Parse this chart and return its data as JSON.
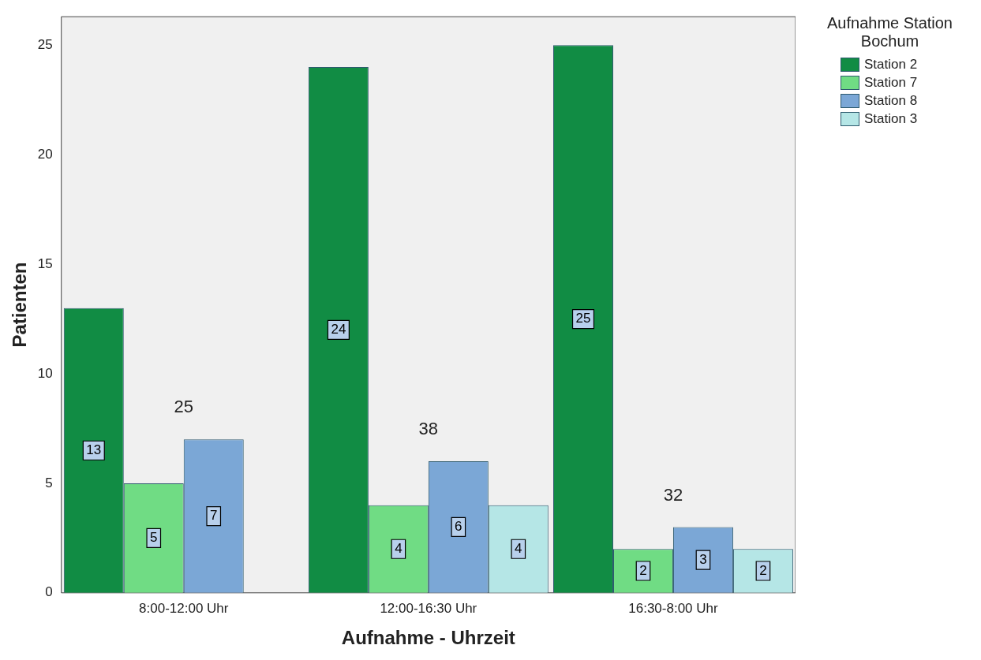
{
  "chart_data": {
    "type": "bar",
    "xlabel": "Aufnahme - Uhrzeit",
    "ylabel": "Patienten",
    "legend_title": "Aufnahme Station Bochum",
    "categories": [
      "8:00-12:00 Uhr",
      "12:00-16:30 Uhr",
      "16:30-8:00 Uhr"
    ],
    "series": [
      {
        "name": "Station 2",
        "color": "#118c44",
        "values": [
          13,
          24,
          25
        ],
        "value_labels": [
          "13",
          "24",
          "25"
        ]
      },
      {
        "name": "Station 7",
        "color": "#70dc84",
        "values": [
          5,
          4,
          2
        ],
        "value_labels": [
          "5",
          "4",
          "2"
        ]
      },
      {
        "name": "Station 8",
        "color": "#7ba7d6",
        "values": [
          7,
          6,
          3
        ],
        "value_labels": [
          "7",
          "6",
          "3"
        ]
      },
      {
        "name": "Station 3",
        "color": "#b5e6e6",
        "values": [
          0,
          4,
          2
        ],
        "value_labels": [
          null,
          "4",
          "2"
        ]
      }
    ],
    "totals": [
      "25",
      "38",
      "32"
    ],
    "ylim": [
      0,
      26.3
    ],
    "yticks": [
      0,
      5,
      10,
      15,
      20,
      25
    ],
    "grid": false,
    "legend": "top right"
  }
}
